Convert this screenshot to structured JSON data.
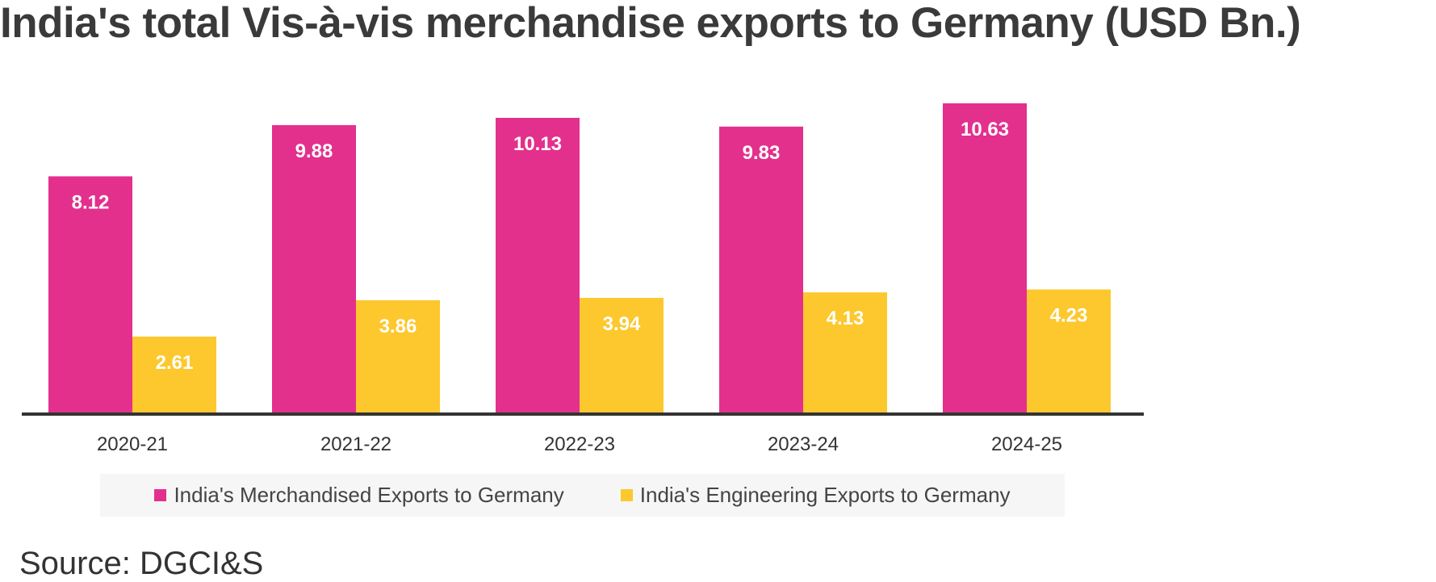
{
  "chart_data": {
    "type": "bar",
    "title": "India's total Vis-à-vis merchandise exports to Germany (USD Bn.)",
    "categories": [
      "2020-21",
      "2021-22",
      "2022-23",
      "2023-24",
      "2024-25"
    ],
    "series": [
      {
        "name": "India's Merchandised Exports to Germany",
        "color": "#e3308d",
        "values": [
          8.12,
          9.88,
          10.13,
          9.83,
          10.63
        ],
        "labels": [
          "8.12",
          "9.88",
          "10.13",
          "9.83",
          "10.63"
        ]
      },
      {
        "name": "India's Engineering Exports to Germany",
        "color": "#fcc82d",
        "values": [
          2.61,
          3.86,
          3.94,
          4.13,
          4.23
        ],
        "labels": [
          "2.61",
          "3.86",
          "3.94",
          "4.13",
          "4.23"
        ]
      }
    ],
    "xlabel": "",
    "ylabel": "",
    "ylim": [
      0,
      10.63
    ],
    "legend_position": "bottom",
    "grid": false
  },
  "source": "Source: DGCI&S",
  "colors": {
    "axis": "#333333",
    "legend_background": "#f6f6f6"
  }
}
